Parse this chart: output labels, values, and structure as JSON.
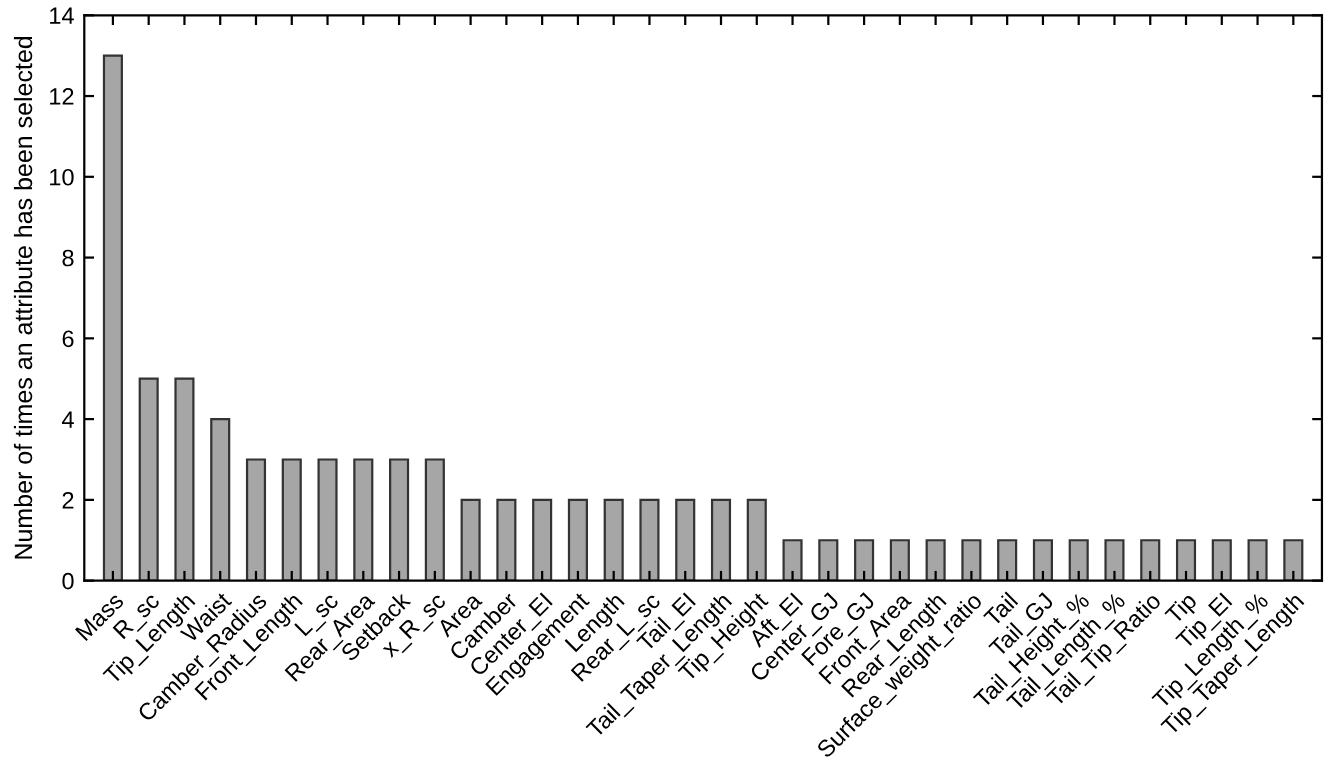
{
  "chart_data": {
    "type": "bar",
    "ylabel": "Number of times an attribute has been selected",
    "categories": [
      "Mass",
      "R_sc",
      "Tip_Length",
      "Waist",
      "Camber_Radius",
      "Front_Length",
      "L_sc",
      "Rear_Area",
      "Setback",
      "x_R_sc",
      "Area",
      "Camber",
      "Center_EI",
      "Engagement",
      "Length",
      "Rear_L_sc",
      "Tail_EI",
      "Tail_Taper_Length",
      "Tip_Height",
      "Aft_EI",
      "Center_GJ",
      "Fore_GJ",
      "Front_Area",
      "Rear_Length",
      "Surface_weight_ratio",
      "Tail",
      "Tail_GJ",
      "Tail_Height_%",
      "Tail_Length_%",
      "Tail_Tip_Ratio",
      "Tip",
      "Tip_EI",
      "Tip_Length_%",
      "Tip_Taper_Length"
    ],
    "values": [
      13,
      5,
      5,
      4,
      3,
      3,
      3,
      3,
      3,
      3,
      2,
      2,
      2,
      2,
      2,
      2,
      2,
      2,
      2,
      1,
      1,
      1,
      1,
      1,
      1,
      1,
      1,
      1,
      1,
      1,
      1,
      1,
      1,
      1
    ],
    "color": "#a6a6a6",
    "ylim": [
      0,
      14
    ],
    "yticks": [
      0,
      2,
      4,
      6,
      8,
      10,
      12,
      14
    ],
    "grid": false
  }
}
